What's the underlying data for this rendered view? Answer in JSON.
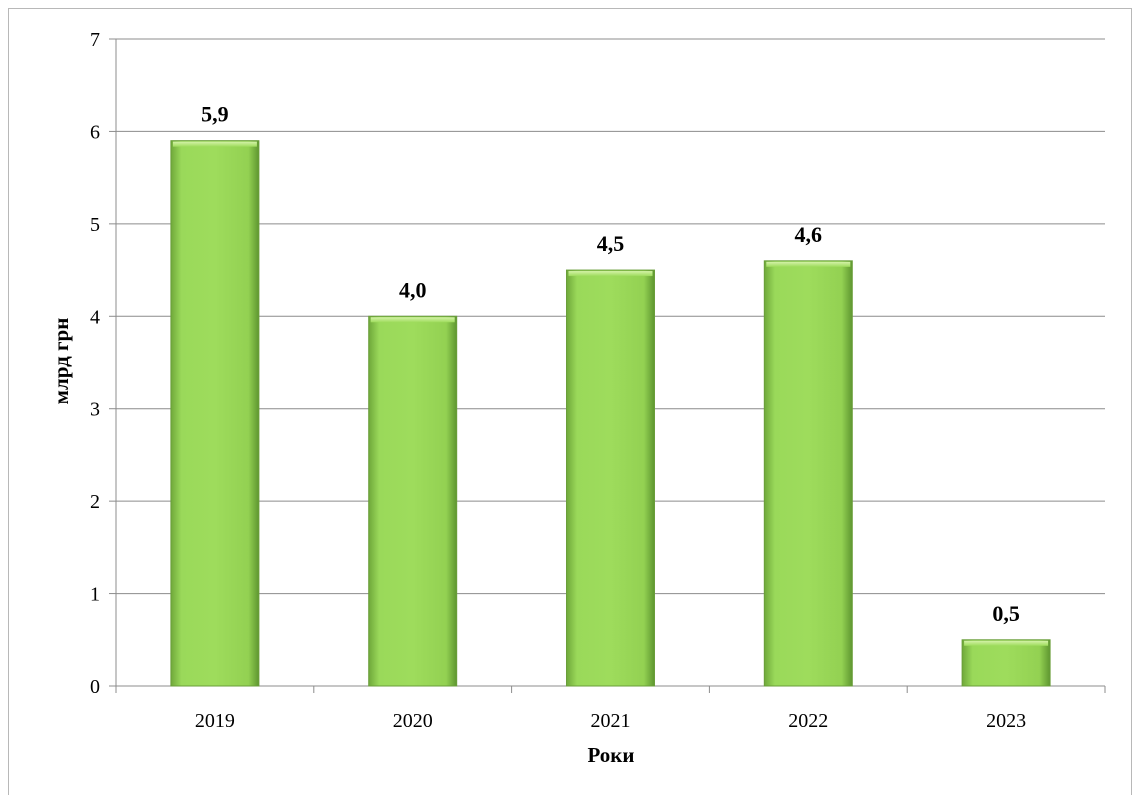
{
  "chart_data": {
    "type": "bar",
    "categories": [
      "2019",
      "2020",
      "2021",
      "2022",
      "2023"
    ],
    "values": [
      5.9,
      4.0,
      4.5,
      4.6,
      0.5
    ],
    "data_labels": [
      "5,9",
      "4,0",
      "4,5",
      "4,6",
      "0,5"
    ],
    "title": "",
    "xlabel": "Роки",
    "ylabel": "млрд грн",
    "ylim": [
      0,
      7
    ],
    "yticks": [
      "0",
      "1",
      "2",
      "3",
      "4",
      "5",
      "6",
      "7"
    ],
    "grid": true,
    "legend": "none",
    "bar_color": "#92d050"
  }
}
